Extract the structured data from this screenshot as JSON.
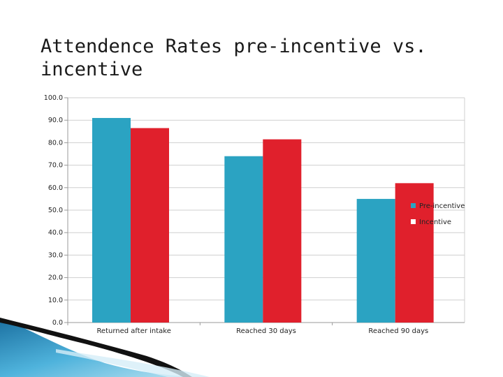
{
  "chart_data": {
    "type": "bar",
    "title": "Attendence Rates pre-incentive vs. incentive",
    "categories": [
      "Returned after intake",
      "Reached 30 days",
      "Reached 90 days"
    ],
    "series": [
      {
        "name": "Pre-incentive",
        "values": [
          91.0,
          74.0,
          55.0
        ],
        "color": "#2ba3c2"
      },
      {
        "name": "Incentive",
        "values": [
          86.5,
          81.5,
          62.0
        ],
        "color": "#e0202c"
      }
    ],
    "yticks": [
      "0.0",
      "10.0",
      "20.0",
      "30.0",
      "40.0",
      "50.0",
      "60.0",
      "70.0",
      "80.0",
      "90.0",
      "100.0"
    ],
    "ylim": [
      0,
      100
    ],
    "xlabel": "",
    "ylabel": "",
    "legend": "right"
  }
}
